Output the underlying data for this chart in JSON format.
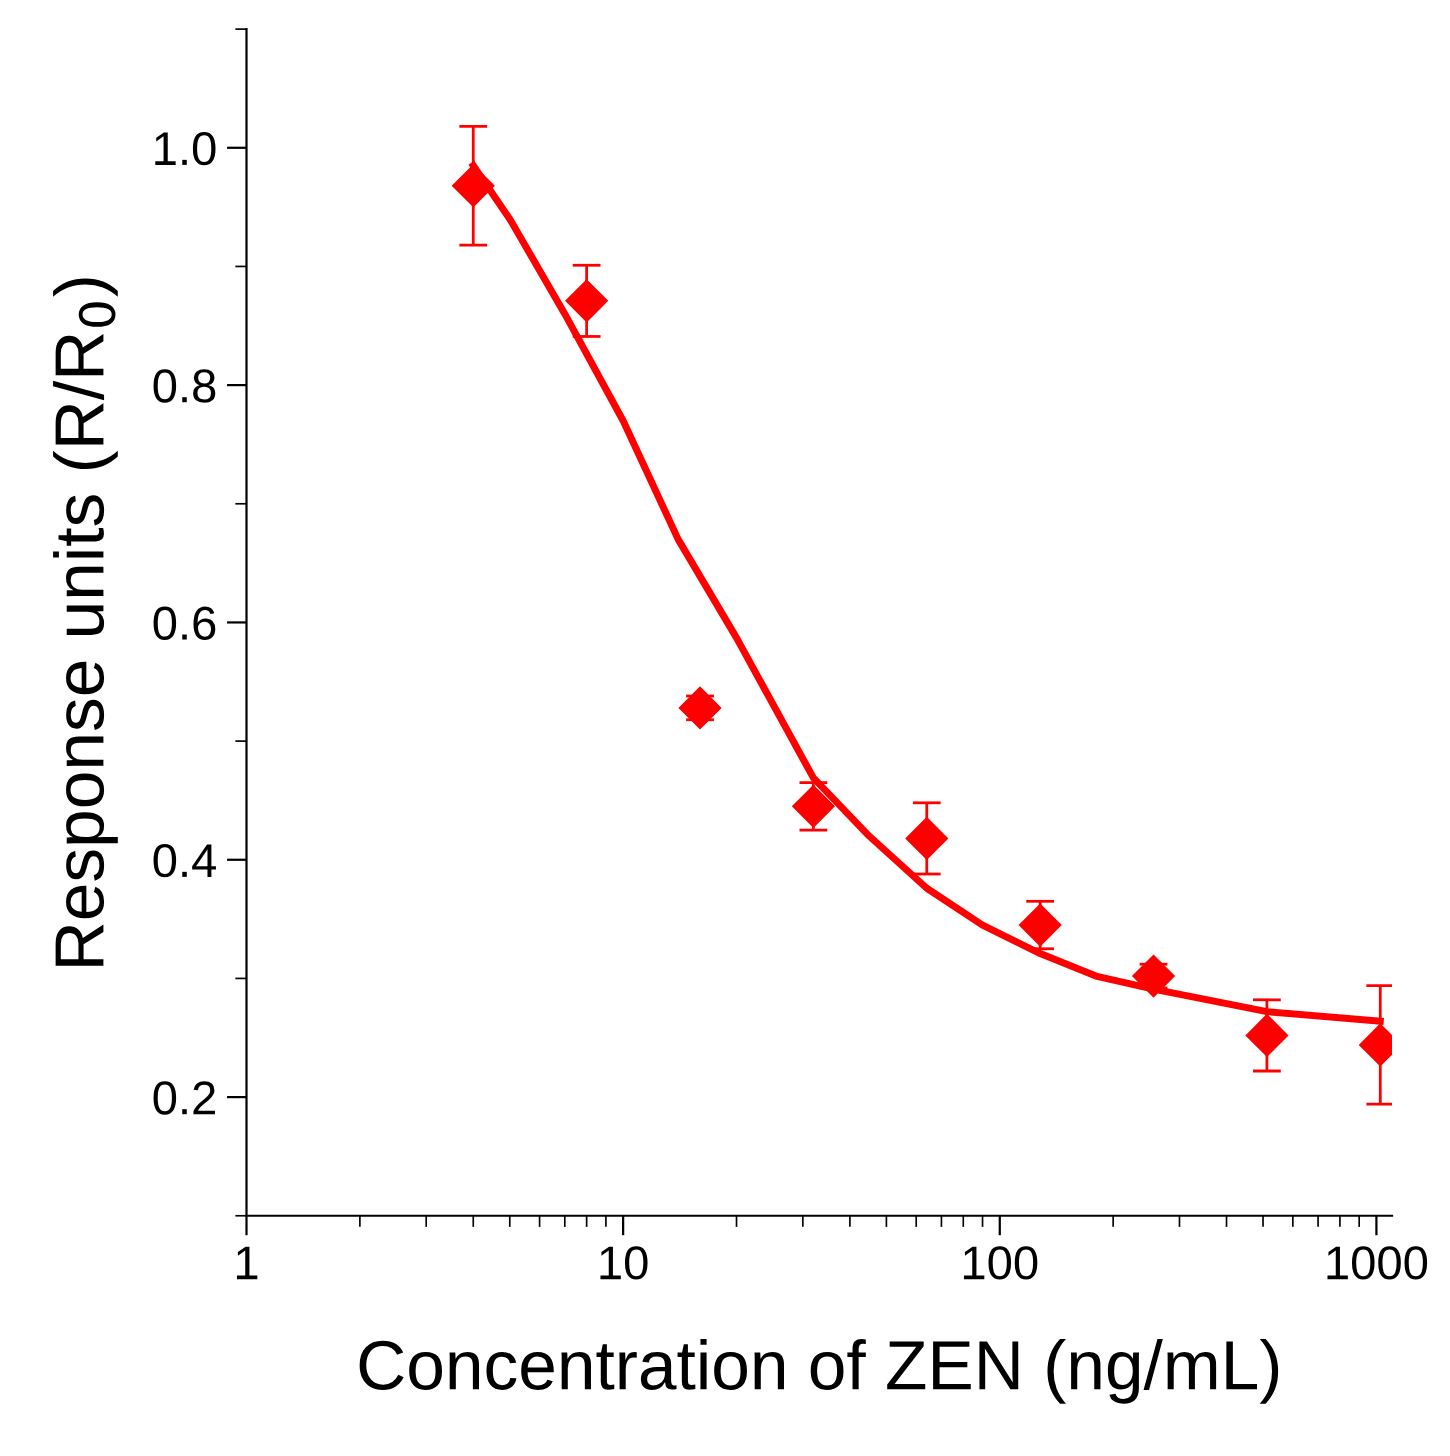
{
  "chart_data": {
    "type": "scatter",
    "xlabel": "Concentration of ZEN (ng/mL)",
    "ylabel": "Response units (R/R$_{0}$)",
    "log": "x",
    "xlim": [
      1,
      1100
    ],
    "xticks": [
      1,
      10,
      100,
      1000
    ],
    "ylim": [
      0.1,
      1.1
    ],
    "yticks": [
      0.2,
      0.4,
      0.6,
      0.8,
      {
        "value": 1.0,
        "label": "1.0"
      }
    ],
    "marker": "diamond",
    "grid": false,
    "legend": false,
    "series": [
      {
        "color": "#ff0000",
        "x": [
          4,
          8,
          16,
          32,
          64,
          128,
          256,
          512,
          1024
        ],
        "values": [
          0.968,
          0.871,
          0.528,
          0.445,
          0.418,
          0.345,
          0.302,
          0.252,
          0.244
        ],
        "errors": [
          0.05,
          0.03,
          0.01,
          0.02,
          0.03,
          0.02,
          0.01,
          0.03,
          0.05
        ]
      },
      {
        "type": "line",
        "color": "#ff0000",
        "marker": "none",
        "x": [
          4,
          5,
          7,
          10,
          14,
          20,
          32,
          45,
          64,
          90,
          128,
          180,
          256,
          512,
          1024
        ],
        "values": [
          0.985,
          0.94,
          0.86,
          0.77,
          0.67,
          0.587,
          0.469,
          0.42,
          0.376,
          0.345,
          0.321,
          0.302,
          0.291,
          0.272,
          0.264
        ]
      }
    ]
  }
}
